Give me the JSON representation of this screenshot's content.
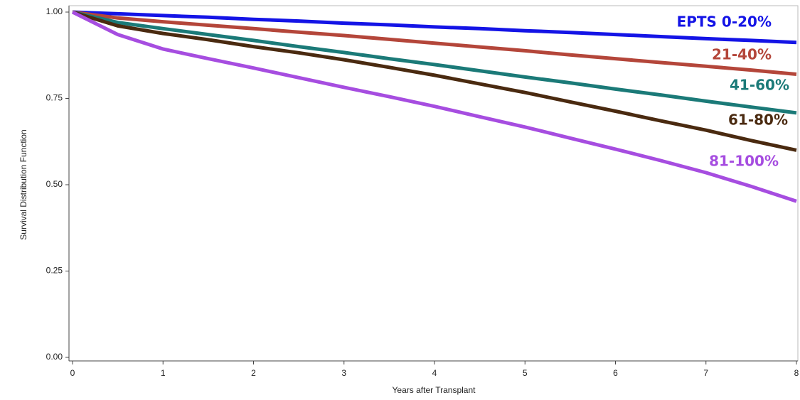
{
  "chart_data": {
    "type": "line",
    "x_label": "Years after Transplant",
    "y_label": "Survival Distribution Function",
    "x": [
      0,
      0.5,
      1,
      1.5,
      2,
      2.5,
      3,
      3.5,
      4,
      4.5,
      5,
      5.5,
      6,
      6.5,
      7,
      7.5,
      8
    ],
    "series": [
      {
        "name": "EPTS 0-20%",
        "color": "#1414e6",
        "values": [
          1,
          0.995,
          0.99,
          0.985,
          0.979,
          0.974,
          0.968,
          0.963,
          0.957,
          0.952,
          0.946,
          0.941,
          0.935,
          0.929,
          0.923,
          0.918,
          0.912
        ]
      },
      {
        "name": "21-40%",
        "color": "#b4463a",
        "values": [
          1,
          0.983,
          0.972,
          0.962,
          0.952,
          0.942,
          0.932,
          0.921,
          0.91,
          0.899,
          0.888,
          0.876,
          0.865,
          0.854,
          0.843,
          0.832,
          0.82
        ]
      },
      {
        "name": "41-60%",
        "color": "#1b7a78",
        "values": [
          1,
          0.97,
          0.952,
          0.935,
          0.918,
          0.9,
          0.883,
          0.865,
          0.848,
          0.83,
          0.812,
          0.795,
          0.777,
          0.76,
          0.742,
          0.725,
          0.708
        ]
      },
      {
        "name": "61-80%",
        "color": "#4a2a10",
        "values": [
          1,
          0.96,
          0.938,
          0.92,
          0.9,
          0.882,
          0.862,
          0.84,
          0.817,
          0.792,
          0.767,
          0.74,
          0.713,
          0.685,
          0.658,
          0.628,
          0.6
        ]
      },
      {
        "name": "81-100%",
        "color": "#a64de0",
        "values": [
          1,
          0.935,
          0.893,
          0.865,
          0.838,
          0.81,
          0.782,
          0.755,
          0.727,
          0.697,
          0.667,
          0.635,
          0.603,
          0.57,
          0.535,
          0.495,
          0.452
        ]
      }
    ],
    "xlim": [
      0,
      8
    ],
    "xticks": [
      0,
      1,
      2,
      3,
      4,
      5,
      6,
      7,
      8
    ],
    "ylim": [
      0,
      1
    ],
    "yticks": [
      {
        "value": 0,
        "label": "0.00"
      },
      0.25,
      {
        "value": 0.5,
        "label": "0.50"
      },
      0.75,
      {
        "value": 1,
        "label": "1.00"
      }
    ]
  }
}
